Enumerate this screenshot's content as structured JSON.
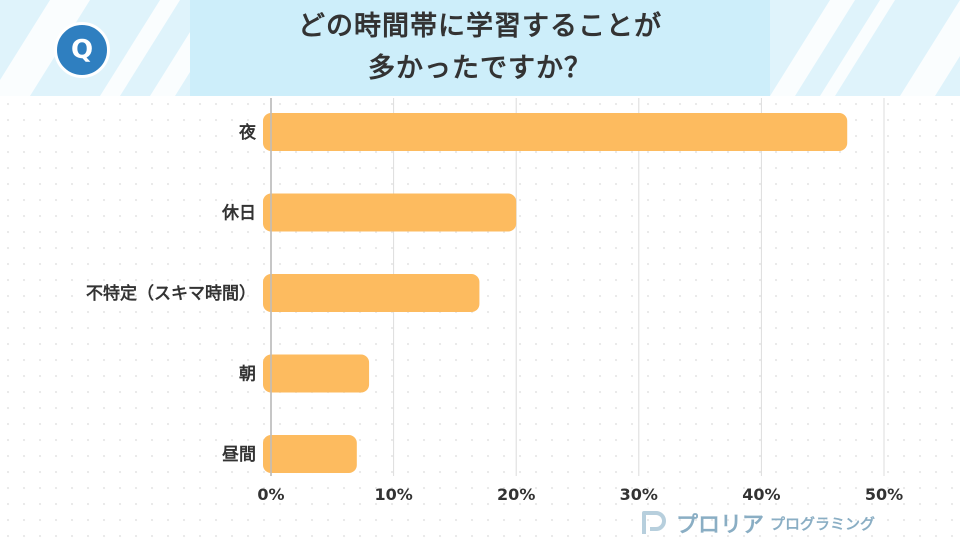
{
  "header": {
    "question_badge": "Q",
    "title_line1": "どの時間帯に学習することが",
    "title_line2": "多かったですか？",
    "colors": {
      "band": "#dff3fb",
      "title_box": "#cdeefa",
      "badge": "#2f7fc0"
    }
  },
  "chart_data": {
    "type": "bar",
    "orientation": "horizontal",
    "categories": [
      "夜",
      "休日",
      "不特定（スキマ時間）",
      "朝",
      "昼間"
    ],
    "values": [
      47,
      20,
      17,
      8,
      7
    ],
    "xlim": [
      0,
      50
    ],
    "xticks": [
      "0%",
      "10%",
      "20%",
      "30%",
      "40%",
      "50%"
    ],
    "grid": true,
    "bar_color": "#fdbb5f"
  },
  "logo": {
    "main": "プロリア",
    "sub": "プログラミング",
    "icon": "p-logo-icon"
  }
}
